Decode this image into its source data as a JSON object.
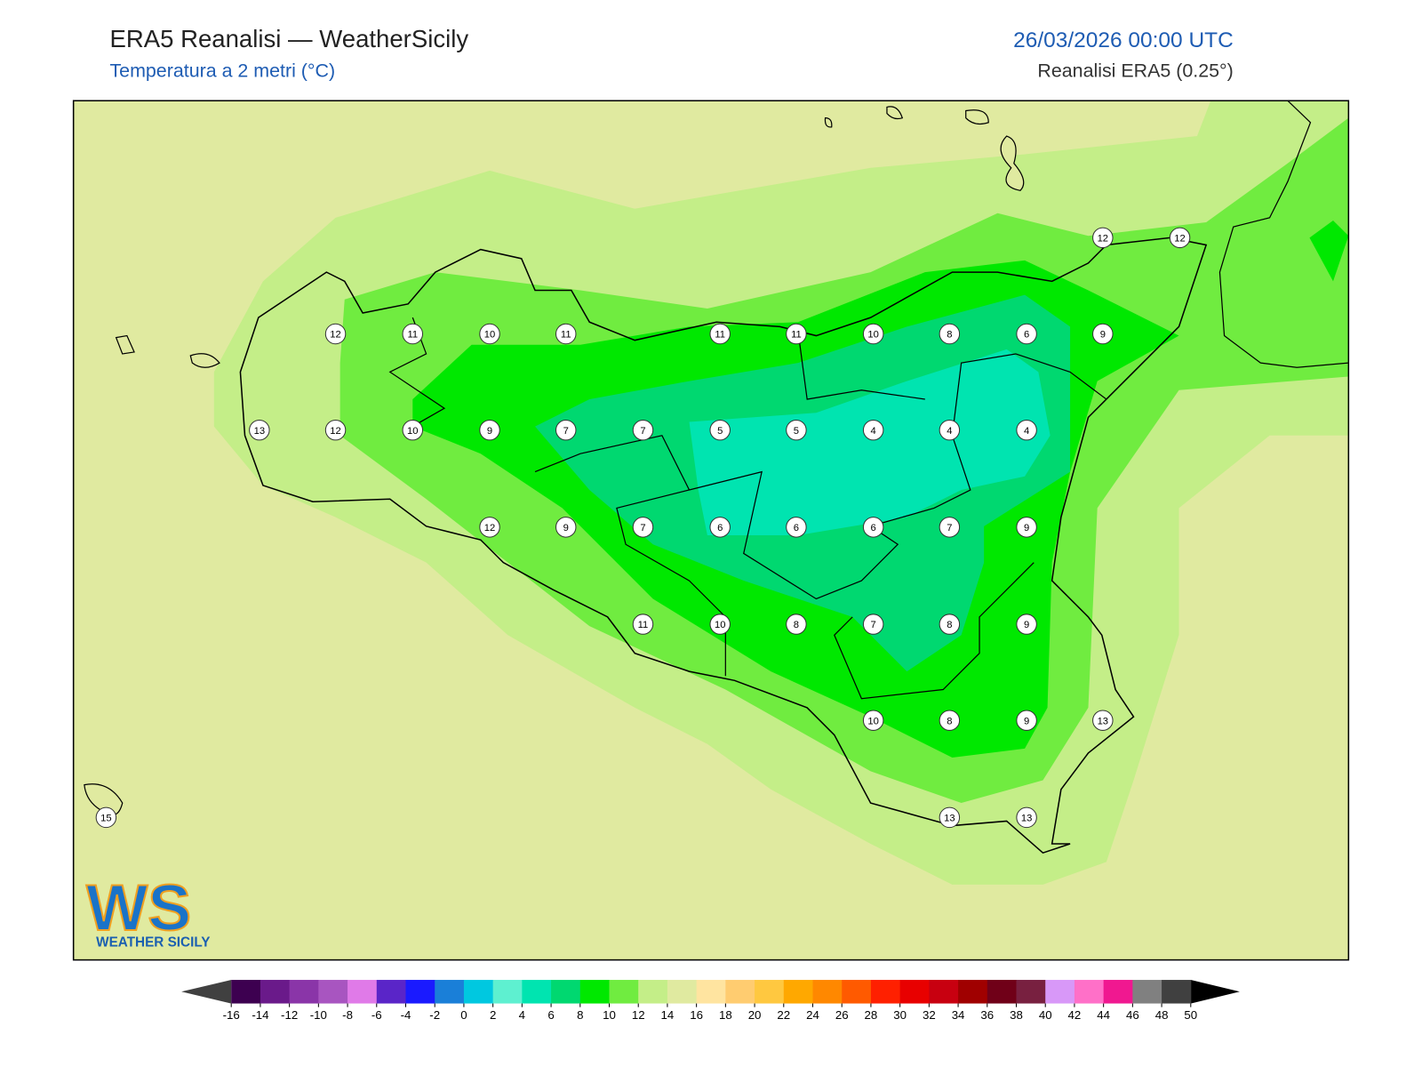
{
  "header": {
    "title": "ERA5 Reanalisi — WeatherSicily",
    "subtitle": "Temperatura a 2 metri (°C)",
    "date": "26/03/2026 00:00 UTC",
    "source": "Reanalisi ERA5 (0.25°)"
  },
  "stations": [
    12,
    12,
    12,
    11,
    10,
    11,
    11,
    11,
    10,
    8,
    6,
    9,
    13,
    12,
    10,
    9,
    7,
    7,
    5,
    5,
    4,
    4,
    4,
    12,
    9,
    7,
    6,
    6,
    6,
    7,
    9,
    11,
    10,
    8,
    7,
    8,
    9,
    10,
    8,
    9,
    13,
    15,
    13,
    13
  ],
  "colorbar": {
    "ticks": [
      -16,
      -14,
      -12,
      -10,
      -8,
      -6,
      -4,
      -2,
      0,
      2,
      4,
      6,
      8,
      10,
      12,
      14,
      16,
      18,
      20,
      22,
      24,
      26,
      28,
      30,
      32,
      34,
      36,
      38,
      40,
      42,
      44,
      46,
      48,
      50
    ],
    "colors": [
      "#3d0050",
      "#6a1a8a",
      "#8a35a8",
      "#a855c0",
      "#e07ae8",
      "#5a25c8",
      "#1a1aff",
      "#1a7fd8",
      "#00c8e0",
      "#5ef0d0",
      "#00e4b0",
      "#00d870",
      "#00e800",
      "#70ec40",
      "#c4ee88",
      "#e0eaa0",
      "#ffe4a0",
      "#ffcc70",
      "#ffc840",
      "#ffa800",
      "#ff8800",
      "#ff5a00",
      "#ff2000",
      "#e80000",
      "#c80010",
      "#a00000",
      "#700018",
      "#782040",
      "#d898f8",
      "#ff70c8",
      "#f01890",
      "#808080",
      "#404040"
    ],
    "under": "#404040",
    "over": "#000000"
  },
  "logo": {
    "mark": "WS",
    "name": "WEATHER SICILY"
  }
}
